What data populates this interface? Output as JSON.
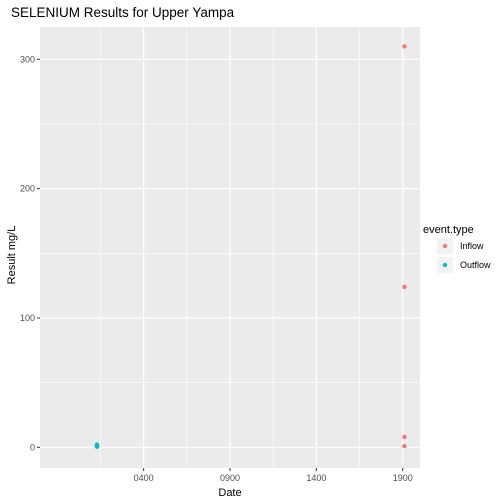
{
  "chart_data": {
    "type": "scatter",
    "title": "SELENIUM Results for Upper Yampa",
    "xlabel": "Date",
    "ylabel": "Result mg/L",
    "x_ticks": [
      "0400",
      "0900",
      "1400",
      "1900"
    ],
    "y_ticks": [
      0,
      100,
      200,
      300
    ],
    "xlim": [
      -200,
      2000
    ],
    "ylim": [
      -16,
      325
    ],
    "legend_title": "event.type",
    "legend_position": "right",
    "grid": true,
    "colors": {
      "panel": "#ebebeb",
      "grid_major": "#ffffff",
      "inflow": "#f8766d",
      "outflow": "#00bfc4"
    },
    "series": [
      {
        "name": "Inflow",
        "color": "#f8766d",
        "points": [
          {
            "x": 1910,
            "y": 310
          },
          {
            "x": 1910,
            "y": 124
          },
          {
            "x": 1910,
            "y": 8
          },
          {
            "x": 1910,
            "y": 1
          }
        ]
      },
      {
        "name": "Outflow",
        "color": "#00bfc4",
        "points": [
          {
            "x": 130,
            "y": 1
          },
          {
            "x": 130,
            "y": 2
          },
          {
            "x": 130,
            "y": 0.5
          }
        ]
      }
    ]
  }
}
